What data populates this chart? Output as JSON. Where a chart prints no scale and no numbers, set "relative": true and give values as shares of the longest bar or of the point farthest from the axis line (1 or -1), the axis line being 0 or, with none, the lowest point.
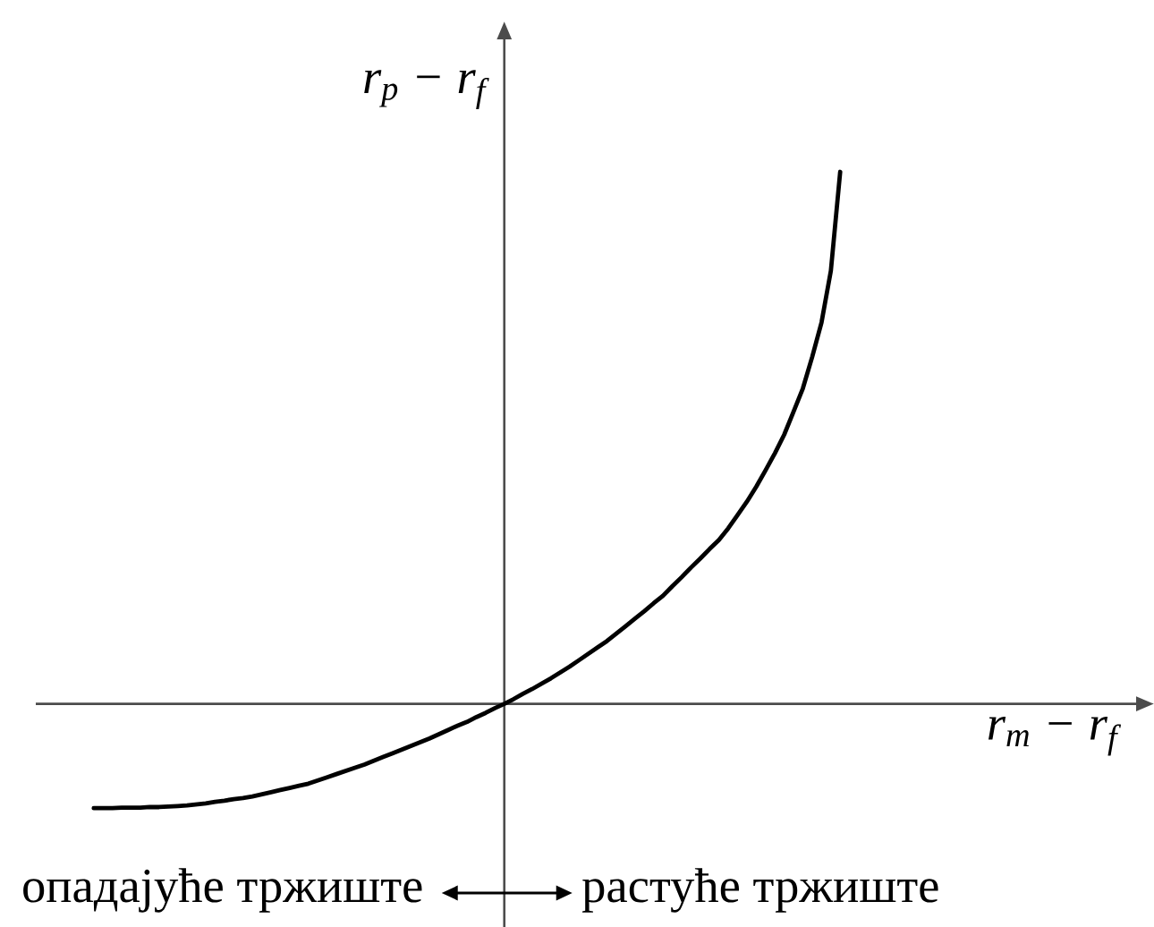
{
  "chart_data": {
    "type": "line",
    "relative": true,
    "color": "#000000",
    "xlabel": "r$_{m}$ − r$_{f}$",
    "ylabel": "r$_{p}$ − r$_{f}$",
    "annotations": [
      "опадајуће тржиште",
      "растуће тржиште"
    ],
    "categories": [
      null,
      null,
      null,
      null,
      null,
      null,
      null,
      null,
      null,
      null,
      null,
      null,
      null,
      null,
      null,
      null,
      null,
      null,
      null,
      null,
      null,
      null,
      null,
      null,
      null,
      null,
      null,
      null,
      null,
      null,
      null,
      null,
      null,
      null,
      null,
      null,
      null,
      null,
      null,
      null,
      null,
      null,
      null,
      null,
      null,
      null,
      null,
      null,
      null,
      null,
      null,
      null,
      null,
      null,
      null,
      null,
      null,
      null,
      null,
      null,
      null,
      null,
      null,
      null,
      null,
      null,
      null,
      null,
      null,
      null,
      null,
      null,
      null,
      null,
      null,
      null,
      null,
      null,
      null,
      null,
      null
    ],
    "values": [
      -0.196,
      -0.196,
      -0.196,
      -0.195,
      -0.195,
      -0.195,
      -0.194,
      -0.194,
      -0.193,
      -0.192,
      -0.191,
      -0.189,
      -0.187,
      -0.184,
      -0.182,
      -0.179,
      -0.177,
      -0.174,
      -0.17,
      -0.166,
      -0.162,
      -0.158,
      -0.154,
      -0.15,
      -0.144,
      -0.138,
      -0.132,
      -0.126,
      -0.12,
      -0.114,
      -0.107,
      -0.1,
      -0.093,
      -0.086,
      -0.079,
      -0.072,
      -0.065,
      -0.057,
      -0.049,
      -0.041,
      -0.034,
      -0.025,
      -0.017,
      -0.008,
      0,
      0.009,
      0.019,
      0.028,
      0.038,
      0.048,
      0.059,
      0.07,
      0.082,
      0.094,
      0.106,
      0.118,
      0.132,
      0.146,
      0.16,
      0.174,
      0.189,
      0.203,
      0.221,
      0.238,
      0.256,
      0.273,
      0.291,
      0.308,
      0.33,
      0.355,
      0.38,
      0.408,
      0.439,
      0.471,
      0.506,
      0.549,
      0.593,
      0.652,
      0.717,
      0.814,
      1.0
    ]
  }
}
